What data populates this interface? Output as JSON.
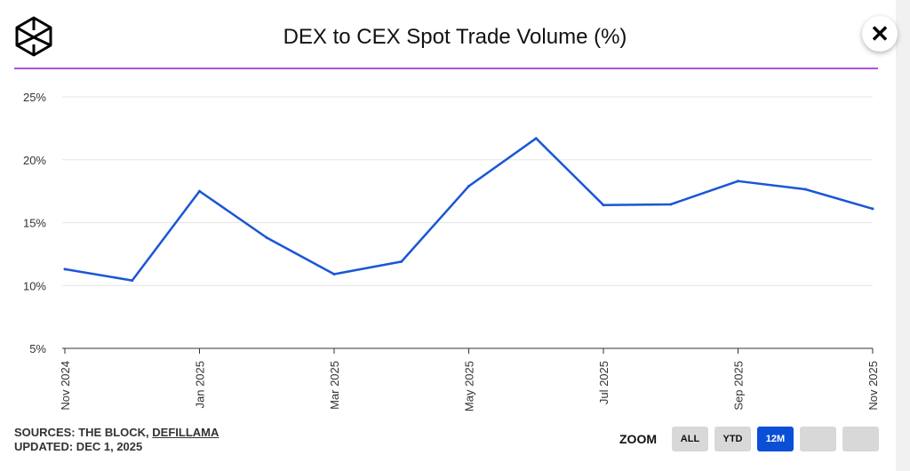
{
  "header": {
    "title": "DEX to CEX Spot Trade Volume (%)",
    "close_icon": "close-x-icon",
    "logo": "the-block-logo"
  },
  "footer": {
    "sources_prefix": "SOURCES: THE BLOCK, ",
    "sources_link": "DEFILLAMA",
    "updated": "UPDATED: DEC 1, 2025"
  },
  "zoom": {
    "label": "ZOOM",
    "buttons": [
      "ALL",
      "YTD",
      "12M",
      "",
      ""
    ],
    "active": "12M"
  },
  "colors": {
    "line": "#1a56d6",
    "accent_rule": "#b04fe0",
    "active_button": "#0a4fd6"
  },
  "chart_data": {
    "type": "line",
    "title": "DEX to CEX Spot Trade Volume (%)",
    "x": [
      "Nov 2024",
      "Dec 2024",
      "Jan 2025",
      "Feb 2025",
      "Mar 2025",
      "Apr 2025",
      "May 2025",
      "Jun 2025",
      "Jul 2025",
      "Aug 2025",
      "Sep 2025",
      "Oct 2025",
      "Nov 2025"
    ],
    "x_tick_labels": [
      "Nov 2024",
      "Jan 2025",
      "Mar 2025",
      "May 2025",
      "Jul 2025",
      "Sep 2025",
      "Nov 2025"
    ],
    "series": [
      {
        "values": [
          11.3,
          10.4,
          17.5,
          13.8,
          10.9,
          11.9,
          17.9,
          21.7,
          16.4,
          16.45,
          18.3,
          17.65,
          16.1
        ]
      }
    ],
    "y_ticks": [
      "5%",
      "10%",
      "15%",
      "20%",
      "25%"
    ],
    "ylim": [
      5,
      25
    ],
    "grid": true,
    "legend": "none"
  }
}
